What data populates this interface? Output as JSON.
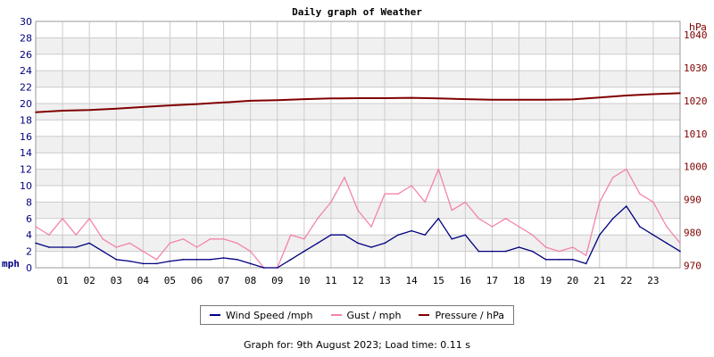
{
  "chart_data": {
    "type": "line",
    "title": "Daily graph of Weather",
    "y_left": {
      "unit_label": "mph",
      "ticks": [
        0,
        2,
        4,
        6,
        8,
        10,
        12,
        14,
        16,
        18,
        20,
        22,
        24,
        26,
        28,
        30
      ],
      "range": [
        0,
        30
      ]
    },
    "y_right": {
      "unit_label": "hPa",
      "ticks": [
        970,
        980,
        990,
        1000,
        1010,
        1020,
        1030,
        1040
      ],
      "range": [
        969.3,
        1044.1
      ]
    },
    "x_ticks": [
      "01",
      "02",
      "03",
      "04",
      "05",
      "06",
      "07",
      "08",
      "09",
      "10",
      "11",
      "12",
      "13",
      "14",
      "15",
      "16",
      "17",
      "18",
      "19",
      "20",
      "21",
      "22",
      "23"
    ],
    "x_range": [
      0,
      24
    ],
    "grid": true,
    "colors": {
      "wind": "#000080",
      "gust": "#f383ad",
      "pressure": "#800000",
      "left_axis": "#000080",
      "right_axis": "#800000",
      "band": "#f0f0f0",
      "gridline": "#cccccc"
    },
    "series": [
      {
        "name": "Wind Speed /mph",
        "axis": "left",
        "x_hours": [
          0,
          0.5,
          1,
          1.5,
          2,
          2.5,
          3,
          3.5,
          4,
          4.5,
          5,
          5.5,
          6,
          6.5,
          7,
          7.5,
          8,
          8.5,
          9,
          9.5,
          10,
          10.5,
          11,
          11.5,
          12,
          12.5,
          13,
          13.5,
          14,
          14.5,
          15,
          15.5,
          16,
          16.5,
          17,
          17.5,
          18,
          18.5,
          19,
          19.5,
          20,
          20.5,
          21,
          21.5,
          22,
          22.5,
          23,
          23.5,
          24
        ],
        "values": [
          3,
          2.5,
          2.5,
          2.5,
          3,
          2,
          1,
          0.8,
          0.5,
          0.5,
          0.8,
          1,
          1,
          1,
          1.2,
          1,
          0.5,
          0,
          0,
          1,
          2,
          3,
          4,
          4,
          3,
          2.5,
          3,
          4,
          4.5,
          4,
          6,
          3.5,
          4,
          2,
          2,
          2,
          2.5,
          2,
          1,
          1,
          1,
          0.5,
          4,
          6,
          7.5,
          5,
          4,
          3,
          2
        ]
      },
      {
        "name": "Gust / mph",
        "axis": "left",
        "x_hours": [
          0,
          0.5,
          1,
          1.5,
          2,
          2.5,
          3,
          3.5,
          4,
          4.5,
          5,
          5.5,
          6,
          6.5,
          7,
          7.5,
          8,
          8.5,
          9,
          9.5,
          10,
          10.5,
          11,
          11.5,
          12,
          12.5,
          13,
          13.5,
          14,
          14.5,
          15,
          15.5,
          16,
          16.5,
          17,
          17.5,
          18,
          18.5,
          19,
          19.5,
          20,
          20.5,
          21,
          21.5,
          22,
          22.5,
          23,
          23.5,
          24
        ],
        "values": [
          5,
          4,
          6,
          4,
          6,
          3.5,
          2.5,
          3,
          2,
          1,
          3,
          3.5,
          2.5,
          3.5,
          3.5,
          3,
          2,
          0,
          0,
          4,
          3.5,
          6,
          8,
          11,
          7,
          5,
          9,
          9,
          10,
          8,
          12,
          7,
          8,
          6,
          5,
          6,
          5,
          4,
          2.5,
          2,
          2.5,
          1.5,
          8,
          11,
          12,
          9,
          8,
          5,
          3
        ]
      },
      {
        "name": "Pressure / hPa",
        "axis": "right",
        "x_hours": [
          0,
          1,
          2,
          3,
          4,
          5,
          6,
          7,
          8,
          9,
          10,
          11,
          12,
          13,
          14,
          15,
          16,
          17,
          18,
          19,
          20,
          21,
          22,
          23,
          24
        ],
        "values": [
          1016.5,
          1017,
          1017.2,
          1017.6,
          1018.1,
          1018.6,
          1019,
          1019.5,
          1020,
          1020.2,
          1020.5,
          1020.7,
          1020.8,
          1020.8,
          1020.9,
          1020.7,
          1020.5,
          1020.3,
          1020.3,
          1020.3,
          1020.4,
          1021,
          1021.6,
          1022,
          1022.3
        ]
      }
    ]
  },
  "legend": {
    "wind_label": "Wind Speed /mph",
    "gust_label": "Gust / mph",
    "pressure_label": "Pressure / hPa"
  },
  "footer": {
    "text": "Graph for: 9th August 2023; Load time: 0.11 s"
  }
}
